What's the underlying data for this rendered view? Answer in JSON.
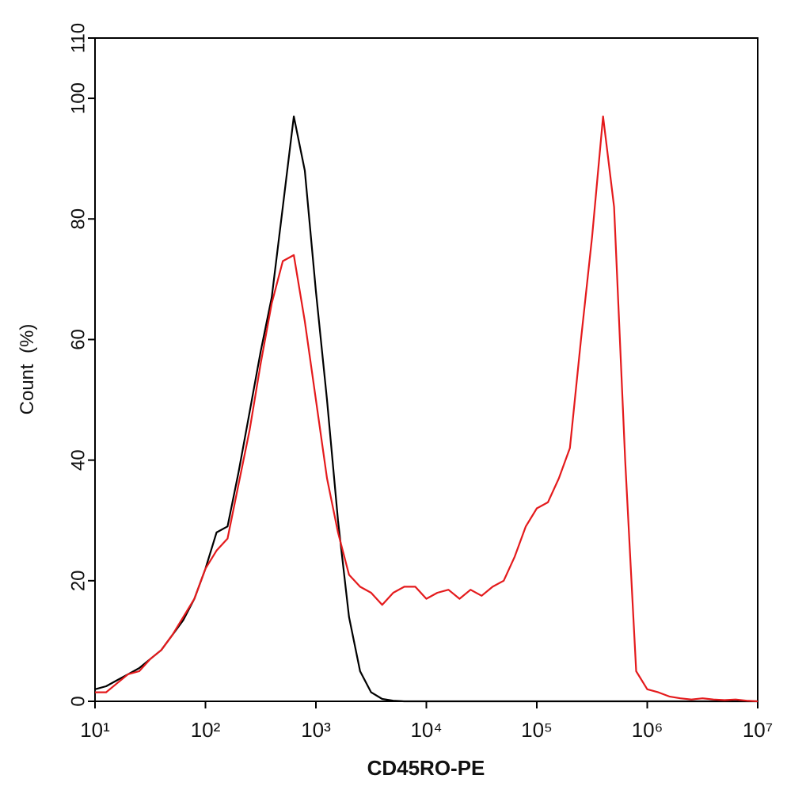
{
  "chart_data": {
    "type": "line",
    "x_label": "CD45RO-PE",
    "y_label": "Count  (%)",
    "x_scale": "log",
    "xlim": [
      10,
      10000000
    ],
    "xticks": [
      {
        "value": 10,
        "label": "10¹"
      },
      {
        "value": 100,
        "label": "10²"
      },
      {
        "value": 1000,
        "label": "10³"
      },
      {
        "value": 10000,
        "label": "10⁴"
      },
      {
        "value": 100000,
        "label": "10⁵"
      },
      {
        "value": 1000000,
        "label": "10⁶"
      },
      {
        "value": 10000000,
        "label": "10⁷"
      }
    ],
    "ylim": [
      0,
      110
    ],
    "yticks": [
      0,
      20,
      40,
      60,
      80,
      100,
      110
    ],
    "x": [
      10,
      12.59,
      15.85,
      19.95,
      25.12,
      31.62,
      39.81,
      50.12,
      63.1,
      79.43,
      100,
      125.9,
      158.5,
      199.5,
      251.2,
      316.2,
      398.1,
      501.2,
      631,
      794.3,
      1000,
      1259,
      1585,
      1995,
      2512,
      3162,
      3981,
      5012,
      6310,
      7943,
      10000,
      12589,
      15849,
      19953,
      25119,
      31623,
      39811,
      50119,
      63096,
      79433,
      100000,
      125893,
      158489,
      199526,
      251189,
      316228,
      398107,
      501187,
      630957,
      794328,
      1000000,
      1258925,
      1584893,
      1995262,
      2511886,
      3162278,
      3981072,
      5011872,
      6309573,
      7943282,
      10000000
    ],
    "series": [
      {
        "color": "#000000",
        "values": [
          2,
          2.5,
          3.5,
          4.5,
          5.5,
          7,
          8.5,
          11,
          13.5,
          17,
          22,
          28,
          29,
          38,
          48,
          58,
          67,
          82,
          97,
          88,
          68,
          50,
          30,
          14,
          5,
          1.5,
          0.4,
          0.1,
          0,
          0,
          0,
          0,
          0,
          0,
          0,
          0,
          0,
          0,
          0,
          0,
          0,
          0,
          0,
          0,
          0,
          0,
          0,
          0,
          0,
          0,
          0,
          0,
          0,
          0,
          0,
          0,
          0,
          0,
          0,
          0,
          0
        ]
      },
      {
        "color": "#e41a1c",
        "values": [
          1.5,
          1.5,
          3,
          4.5,
          5,
          7,
          8.5,
          11,
          14,
          17,
          22,
          25,
          27,
          36,
          45,
          56,
          66,
          73,
          74,
          63,
          50,
          37,
          28,
          21,
          19,
          18,
          16,
          18,
          19,
          19,
          17,
          18,
          18.5,
          17,
          18.5,
          17.5,
          19,
          20,
          24,
          29,
          32,
          33,
          37,
          42,
          60,
          77,
          97,
          82,
          40,
          5,
          2,
          1.5,
          0.8,
          0.5,
          0.3,
          0.5,
          0.3,
          0.2,
          0.3,
          0.1,
          0
        ]
      }
    ]
  }
}
